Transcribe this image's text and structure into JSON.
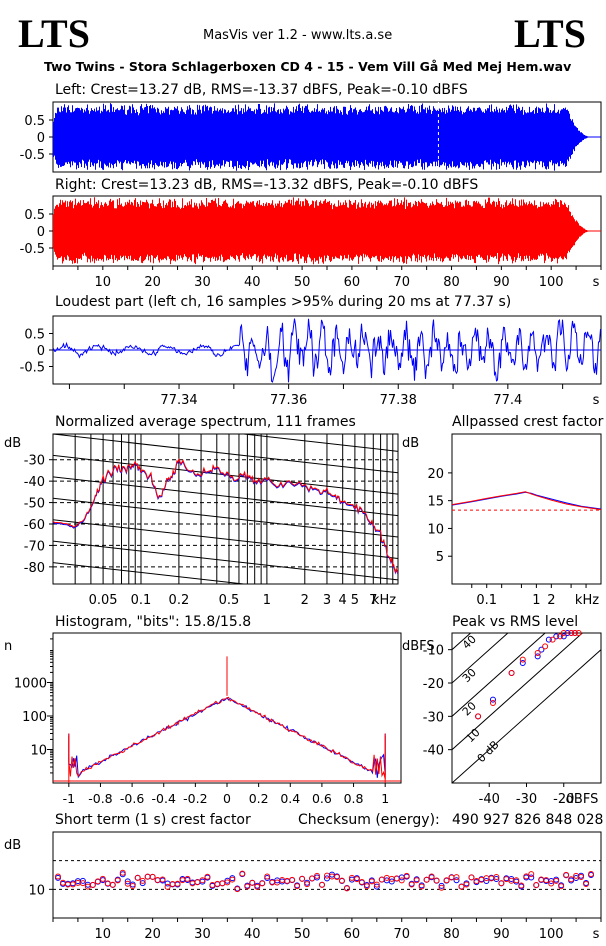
{
  "header": {
    "logo_left": "LTS",
    "logo_right": "LTS",
    "app": "MasVis ver 1.2 - www.lts.a.se",
    "filename": "Two Twins - Stora Schlagerboxen CD 4 - 15 - Vem Vill Gå Med Mej Hem.wav"
  },
  "colors": {
    "left": "#0000ff",
    "right": "#ff0000",
    "grid": "#000000"
  },
  "chart_data": [
    {
      "id": "left_waveform",
      "type": "area",
      "title": "Left: Crest=13.27 dB, RMS=-13.37 dBFS, Peak=-0.10 dBFS",
      "y_ticks": [
        "0.5",
        "0",
        "-0.5"
      ],
      "ylim": [
        -1,
        1
      ],
      "xlim": [
        0,
        110
      ],
      "envelope_end_s": 103,
      "fade_out_end_s": 108,
      "marker_s": 77.37
    },
    {
      "id": "right_waveform",
      "type": "area",
      "title": "Right: Crest=13.23 dB, RMS=-13.32 dBFS, Peak=-0.10 dBFS",
      "y_ticks": [
        "0.5",
        "0",
        "-0.5"
      ],
      "ylim": [
        -1,
        1
      ],
      "xlim": [
        0,
        110
      ],
      "x_ticks": [
        "10",
        "20",
        "30",
        "40",
        "50",
        "60",
        "70",
        "80",
        "90",
        "100"
      ],
      "x_unit": "s"
    },
    {
      "id": "loudest_part",
      "type": "line",
      "title": "Loudest part (left  ch, 16 samples >95% during 20 ms at 77.37 s)",
      "y_ticks": [
        "0.5",
        "0",
        "-0.5"
      ],
      "ylim": [
        -1,
        1
      ],
      "xlim": [
        77.317,
        77.417
      ],
      "x_ticks": [
        "77.34",
        "77.36",
        "77.38",
        "77.4"
      ],
      "x_unit": "s"
    },
    {
      "id": "spectrum",
      "type": "line",
      "title": "Normalized average spectrum, 111 frames",
      "ylabel": "dB",
      "y_ticks": [
        "-30",
        "-40",
        "-50",
        "-60",
        "-70",
        "-80"
      ],
      "ylim": [
        -88,
        -18
      ],
      "x_ticks": [
        "0.05",
        "0.1",
        "0.2",
        "0.5",
        "1",
        "2",
        "3",
        "4",
        "5",
        "7"
      ],
      "x_unit": "kHz",
      "x_scale": "log",
      "xlim": [
        0.02,
        11
      ],
      "series": [
        {
          "x": [
            0.02,
            0.025,
            0.03,
            0.035,
            0.04,
            0.045,
            0.05,
            0.06,
            0.07,
            0.08,
            0.09,
            0.1,
            0.12,
            0.14,
            0.16,
            0.18,
            0.2,
            0.25,
            0.3,
            0.35,
            0.4,
            0.5,
            0.6,
            0.7,
            0.8,
            1,
            1.2,
            1.5,
            2,
            2.5,
            3,
            3.5,
            4,
            5,
            6,
            7,
            8,
            9,
            10,
            11
          ],
          "y": [
            -59,
            -60,
            -61,
            -58,
            -52,
            -45,
            -38,
            -35,
            -33,
            -34,
            -32,
            -34,
            -38,
            -49,
            -40,
            -37,
            -30,
            -35,
            -37,
            -35,
            -33,
            -38,
            -39,
            -37,
            -40,
            -39,
            -42,
            -40,
            -42,
            -44,
            -45,
            -47,
            -50,
            -51,
            -55,
            -60,
            -65,
            -73,
            -78,
            -83
          ]
        }
      ]
    },
    {
      "id": "allpassed_crest",
      "type": "line",
      "title": "Allpassed crest factor",
      "ylabel": "dB",
      "y_ticks": [
        "20",
        "15",
        "10",
        "5"
      ],
      "ylim": [
        0,
        27
      ],
      "x_ticks": [
        "0.1",
        "1",
        "2",
        "kHz"
      ],
      "x_scale": "log",
      "xlim": [
        0.02,
        20
      ],
      "reference_db": 13.3,
      "series": [
        {
          "name": "left",
          "x": [
            0.02,
            0.05,
            0.1,
            0.2,
            0.4,
            0.6,
            0.8,
            1,
            2,
            4,
            8,
            20
          ],
          "y": [
            14.2,
            14.8,
            15.3,
            15.8,
            16.2,
            16.5,
            16.3,
            16.0,
            15.3,
            14.6,
            14.0,
            13.5
          ]
        },
        {
          "name": "right",
          "x": [
            0.02,
            0.05,
            0.1,
            0.2,
            0.4,
            0.6,
            0.8,
            1,
            2,
            4,
            8,
            20
          ],
          "y": [
            14.3,
            14.9,
            15.4,
            15.9,
            16.3,
            16.6,
            16.2,
            15.9,
            15.1,
            14.4,
            13.9,
            13.4
          ]
        }
      ]
    },
    {
      "id": "histogram",
      "type": "line",
      "title": "Histogram, \"bits\": 15.8/15.8",
      "ylabel": "n",
      "y_ticks": [
        "1000",
        "100",
        "10"
      ],
      "y_scale": "log",
      "ylim": [
        1,
        30000
      ],
      "xlim": [
        -1.1,
        1.1
      ],
      "x_ticks": [
        "-1",
        "-0.8",
        "-0.6",
        "-0.4",
        "-0.2",
        "0",
        "0.2",
        "0.4",
        "0.6",
        "0.8",
        "1"
      ]
    },
    {
      "id": "peak_vs_rms",
      "type": "scatter",
      "title": "Peak vs RMS level",
      "ylabel": "dBFS",
      "y_ticks": [
        "-10",
        "-20",
        "-30",
        "-40"
      ],
      "x_ticks": [
        "-40",
        "-30",
        "-20",
        "dBFS"
      ],
      "xlim": [
        -50,
        -10
      ],
      "ylim": [
        -50,
        -5
      ],
      "diag_labels": [
        "40",
        "30",
        "20",
        "10",
        "0 dB"
      ],
      "series": [
        {
          "name": "left",
          "x": [
            -43,
            -39,
            -34,
            -31,
            -27,
            -26,
            -24,
            -22,
            -20,
            -19,
            -18,
            -17
          ],
          "y": [
            -30,
            -25,
            -17,
            -14,
            -12,
            -10,
            -7,
            -6,
            -6,
            -5,
            -5,
            -5
          ]
        },
        {
          "name": "right",
          "x": [
            -43,
            -39,
            -34,
            -31,
            -27,
            -25,
            -23,
            -21,
            -20,
            -18,
            -17,
            -16
          ],
          "y": [
            -30,
            -26,
            -17,
            -13,
            -11,
            -9,
            -7,
            -6,
            -5,
            -5,
            -5,
            -5
          ]
        }
      ]
    },
    {
      "id": "short_term_crest",
      "type": "scatter",
      "title": "Short term (1 s) crest factor",
      "ylabel": "dB",
      "y_ticks": [
        "10"
      ],
      "ylim": [
        5,
        20
      ],
      "xlim": [
        0,
        110
      ],
      "x_ticks": [
        "10",
        "20",
        "30",
        "40",
        "50",
        "60",
        "70",
        "80",
        "90",
        "100"
      ],
      "x_unit": "s",
      "checksum_label": "Checksum (energy):",
      "checksum_value": "490 927 826 848 028"
    }
  ]
}
